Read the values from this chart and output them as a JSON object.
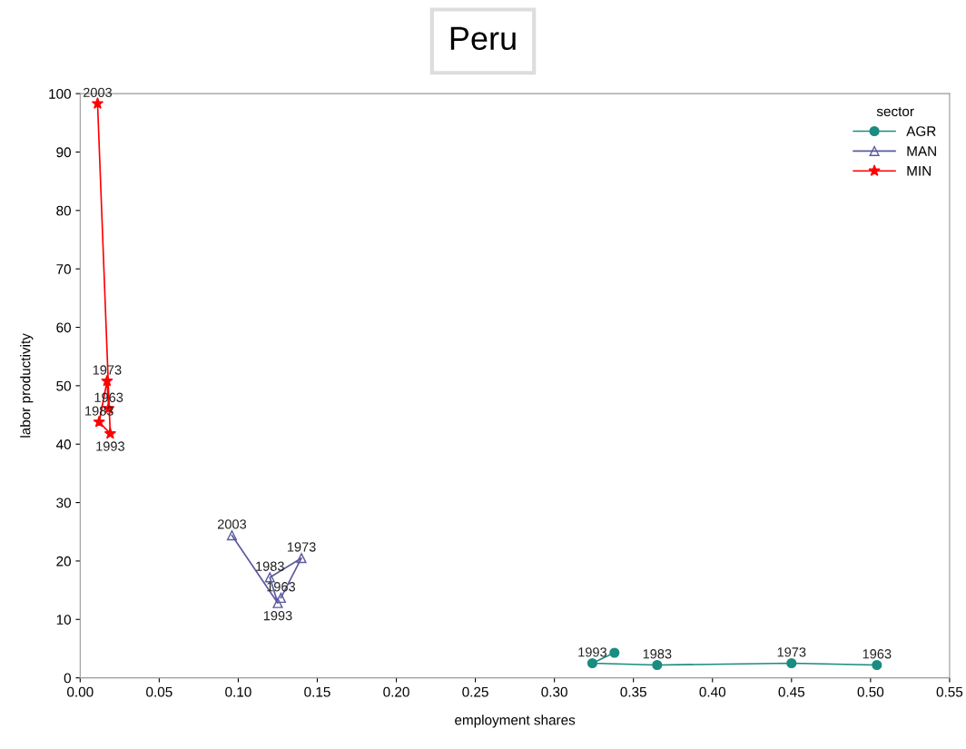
{
  "chart_data": {
    "type": "line",
    "title": "Peru",
    "xlabel": "employment shares",
    "ylabel": "labor productivity",
    "legend_title": "sector",
    "legend": "top right",
    "grid": false,
    "xlim": [
      0,
      0.55
    ],
    "xticks": [
      {
        "value": 0,
        "label": "0.00"
      },
      {
        "value": 0.05,
        "label": "0.05"
      },
      {
        "value": 0.1,
        "label": "0.10"
      },
      {
        "value": 0.15,
        "label": "0.15"
      },
      {
        "value": 0.2,
        "label": "0.20"
      },
      {
        "value": 0.25,
        "label": "0.25"
      },
      {
        "value": 0.3,
        "label": "0.30"
      },
      {
        "value": 0.35,
        "label": "0.35"
      },
      {
        "value": 0.4,
        "label": "0.40"
      },
      {
        "value": 0.45,
        "label": "0.45"
      },
      {
        "value": 0.5,
        "label": "0.50"
      },
      {
        "value": 0.55,
        "label": "0.55"
      }
    ],
    "ylim": [
      0,
      100
    ],
    "yticks": [
      0,
      10,
      20,
      30,
      40,
      50,
      60,
      70,
      80,
      90,
      100
    ],
    "series": [
      {
        "name": "AGR",
        "color": "#1a8c80",
        "marker": "circle",
        "x": [
          0.504,
          0.45,
          0.365,
          0.324,
          0.338
        ],
        "values": [
          2.2,
          2.5,
          2.2,
          2.5,
          4.3
        ]
      },
      {
        "name": "MAN",
        "color": "#5a5a9e",
        "marker": "triangle",
        "x": [
          0.127,
          0.14,
          0.12,
          0.125,
          0.096
        ],
        "values": [
          13.7,
          20.5,
          17.2,
          12.8,
          24.4
        ]
      },
      {
        "name": "MIN",
        "color": "#ff0000",
        "marker": "star",
        "x": [
          0.018,
          0.017,
          0.012,
          0.019,
          0.011
        ],
        "values": [
          46.1,
          50.8,
          43.8,
          41.8,
          98.3
        ]
      }
    ],
    "annotations": [
      {
        "text": "1963",
        "x": 0.504,
        "y": 2.2
      },
      {
        "text": "1973",
        "x": 0.45,
        "y": 2.5
      },
      {
        "text": "1983",
        "x": 0.365,
        "y": 2.2
      },
      {
        "text": "1993",
        "x": 0.324,
        "y": 2.5
      },
      {
        "text": "1963",
        "x": 0.127,
        "y": 13.7
      },
      {
        "text": "1973",
        "x": 0.14,
        "y": 20.5
      },
      {
        "text": "1983",
        "x": 0.12,
        "y": 17.2
      },
      {
        "text": "1993",
        "x": 0.125,
        "y": 12.8
      },
      {
        "text": "2003",
        "x": 0.096,
        "y": 24.4
      },
      {
        "text": "1963",
        "x": 0.018,
        "y": 46.1
      },
      {
        "text": "1973",
        "x": 0.017,
        "y": 50.8
      },
      {
        "text": "1983",
        "x": 0.012,
        "y": 43.8
      },
      {
        "text": "1993",
        "x": 0.019,
        "y": 41.8
      },
      {
        "text": "2003",
        "x": 0.011,
        "y": 98.3
      }
    ]
  }
}
